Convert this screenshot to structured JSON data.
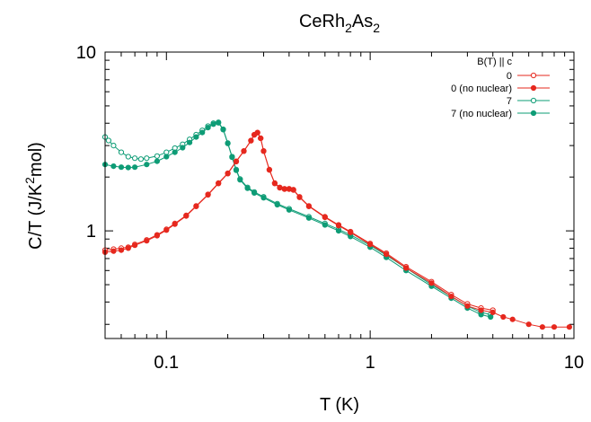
{
  "chart_data": {
    "type": "scatter",
    "title": {
      "prefix": "CeRh",
      "sub1": "2",
      "mid": "As",
      "sub2": "2"
    },
    "xlabel": "T (K)",
    "ylabel": {
      "prefix": "C/T (J/K",
      "sup": "2",
      "suffix": "mol)"
    },
    "xscale": "log",
    "yscale": "log",
    "xlim": [
      0.05,
      10
    ],
    "ylim": [
      0.25,
      10
    ],
    "xticks": [
      {
        "value": 0.1,
        "label": "0.1"
      },
      {
        "value": 1,
        "label": "1"
      },
      {
        "value": 10,
        "label": "10"
      }
    ],
    "yticks": [
      {
        "value": 1,
        "label": "1"
      },
      {
        "value": 10,
        "label": "10"
      }
    ],
    "grid": false,
    "legend": {
      "title": "B(T) || c",
      "placement": "top-right"
    },
    "colors": {
      "red": "#e6281e",
      "green": "#0e9c76"
    },
    "series": [
      {
        "name": "0",
        "color": "#e6281e",
        "marker": "open-circle",
        "points": [
          [
            0.05,
            0.78
          ],
          [
            0.055,
            0.79
          ],
          [
            0.06,
            0.8
          ],
          [
            0.065,
            0.81
          ],
          [
            0.07,
            0.84
          ],
          [
            0.08,
            0.89
          ],
          [
            0.09,
            0.95
          ],
          [
            0.1,
            1.02
          ],
          [
            0.11,
            1.1
          ],
          [
            0.125,
            1.22
          ],
          [
            0.14,
            1.38
          ],
          [
            0.16,
            1.6
          ],
          [
            0.18,
            1.85
          ],
          [
            0.2,
            2.1
          ],
          [
            0.22,
            2.45
          ],
          [
            0.24,
            2.8
          ],
          [
            0.26,
            3.2
          ],
          [
            0.27,
            3.45
          ],
          [
            0.28,
            3.55
          ],
          [
            0.29,
            3.3
          ],
          [
            0.3,
            2.8
          ],
          [
            0.32,
            2.2
          ],
          [
            0.34,
            1.85
          ],
          [
            0.36,
            1.75
          ],
          [
            0.38,
            1.72
          ],
          [
            0.4,
            1.72
          ],
          [
            0.42,
            1.7
          ],
          [
            0.45,
            1.55
          ],
          [
            0.5,
            1.38
          ],
          [
            0.6,
            1.2
          ],
          [
            0.7,
            1.08
          ],
          [
            0.8,
            0.99
          ],
          [
            1.0,
            0.85
          ],
          [
            1.2,
            0.75
          ],
          [
            1.5,
            0.63
          ],
          [
            2.0,
            0.52
          ],
          [
            2.5,
            0.44
          ],
          [
            3.0,
            0.39
          ],
          [
            3.5,
            0.37
          ],
          [
            4.0,
            0.36
          ]
        ]
      },
      {
        "name": "0 (no nuclear)",
        "color": "#e6281e",
        "marker": "filled-circle",
        "points": [
          [
            0.05,
            0.76
          ],
          [
            0.055,
            0.77
          ],
          [
            0.06,
            0.78
          ],
          [
            0.065,
            0.8
          ],
          [
            0.07,
            0.83
          ],
          [
            0.08,
            0.88
          ],
          [
            0.09,
            0.94
          ],
          [
            0.1,
            1.01
          ],
          [
            0.11,
            1.09
          ],
          [
            0.125,
            1.21
          ],
          [
            0.14,
            1.37
          ],
          [
            0.16,
            1.59
          ],
          [
            0.18,
            1.84
          ],
          [
            0.2,
            2.09
          ],
          [
            0.22,
            2.44
          ],
          [
            0.24,
            2.79
          ],
          [
            0.26,
            3.19
          ],
          [
            0.27,
            3.44
          ],
          [
            0.28,
            3.54
          ],
          [
            0.29,
            3.29
          ],
          [
            0.3,
            2.79
          ],
          [
            0.32,
            2.19
          ],
          [
            0.34,
            1.84
          ],
          [
            0.36,
            1.74
          ],
          [
            0.38,
            1.71
          ],
          [
            0.4,
            1.71
          ],
          [
            0.42,
            1.69
          ],
          [
            0.45,
            1.54
          ],
          [
            0.5,
            1.37
          ],
          [
            0.6,
            1.19
          ],
          [
            0.7,
            1.07
          ],
          [
            0.8,
            0.98
          ],
          [
            1.0,
            0.84
          ],
          [
            1.2,
            0.74
          ],
          [
            1.5,
            0.62
          ],
          [
            2.0,
            0.51
          ],
          [
            2.5,
            0.43
          ],
          [
            3.0,
            0.38
          ],
          [
            3.5,
            0.36
          ],
          [
            4.0,
            0.35
          ],
          [
            4.5,
            0.33
          ],
          [
            5.0,
            0.32
          ],
          [
            6.0,
            0.3
          ],
          [
            7.0,
            0.29
          ],
          [
            8.0,
            0.29
          ],
          [
            9.5,
            0.29
          ]
        ]
      },
      {
        "name": "7",
        "color": "#0e9c76",
        "marker": "open-circle",
        "points": [
          [
            0.05,
            3.35
          ],
          [
            0.052,
            3.2
          ],
          [
            0.055,
            3.0
          ],
          [
            0.06,
            2.75
          ],
          [
            0.065,
            2.6
          ],
          [
            0.07,
            2.55
          ],
          [
            0.075,
            2.52
          ],
          [
            0.08,
            2.55
          ],
          [
            0.09,
            2.62
          ],
          [
            0.1,
            2.75
          ],
          [
            0.11,
            2.9
          ],
          [
            0.12,
            3.05
          ],
          [
            0.13,
            3.25
          ],
          [
            0.14,
            3.45
          ],
          [
            0.15,
            3.65
          ],
          [
            0.16,
            3.85
          ],
          [
            0.17,
            4.0
          ],
          [
            0.18,
            4.05
          ],
          [
            0.19,
            3.7
          ],
          [
            0.2,
            3.1
          ],
          [
            0.21,
            2.6
          ],
          [
            0.22,
            2.2
          ],
          [
            0.23,
            1.95
          ],
          [
            0.25,
            1.75
          ],
          [
            0.27,
            1.65
          ],
          [
            0.3,
            1.55
          ],
          [
            0.35,
            1.42
          ],
          [
            0.4,
            1.33
          ],
          [
            0.5,
            1.2
          ],
          [
            0.6,
            1.1
          ],
          [
            0.7,
            1.02
          ],
          [
            0.8,
            0.95
          ],
          [
            1.0,
            0.83
          ],
          [
            1.2,
            0.73
          ],
          [
            1.5,
            0.62
          ],
          [
            2.0,
            0.5
          ],
          [
            2.5,
            0.43
          ],
          [
            3.0,
            0.38
          ],
          [
            3.5,
            0.35
          ],
          [
            3.9,
            0.34
          ]
        ]
      },
      {
        "name": "7 (no nuclear)",
        "color": "#0e9c76",
        "marker": "filled-circle",
        "points": [
          [
            0.05,
            2.35
          ],
          [
            0.055,
            2.3
          ],
          [
            0.06,
            2.27
          ],
          [
            0.065,
            2.26
          ],
          [
            0.07,
            2.27
          ],
          [
            0.08,
            2.35
          ],
          [
            0.09,
            2.45
          ],
          [
            0.1,
            2.6
          ],
          [
            0.11,
            2.75
          ],
          [
            0.12,
            2.92
          ],
          [
            0.13,
            3.12
          ],
          [
            0.14,
            3.35
          ],
          [
            0.15,
            3.55
          ],
          [
            0.16,
            3.78
          ],
          [
            0.17,
            3.95
          ],
          [
            0.18,
            4.02
          ],
          [
            0.19,
            3.68
          ],
          [
            0.2,
            3.08
          ],
          [
            0.21,
            2.58
          ],
          [
            0.22,
            2.18
          ],
          [
            0.23,
            1.93
          ],
          [
            0.25,
            1.73
          ],
          [
            0.27,
            1.63
          ],
          [
            0.3,
            1.53
          ],
          [
            0.35,
            1.4
          ],
          [
            0.4,
            1.31
          ],
          [
            0.5,
            1.18
          ],
          [
            0.6,
            1.08
          ],
          [
            0.7,
            1.0
          ],
          [
            0.8,
            0.93
          ],
          [
            1.0,
            0.81
          ],
          [
            1.2,
            0.71
          ],
          [
            1.5,
            0.6
          ],
          [
            2.0,
            0.49
          ],
          [
            2.5,
            0.42
          ],
          [
            3.0,
            0.37
          ],
          [
            3.5,
            0.34
          ],
          [
            3.9,
            0.33
          ]
        ]
      }
    ]
  }
}
